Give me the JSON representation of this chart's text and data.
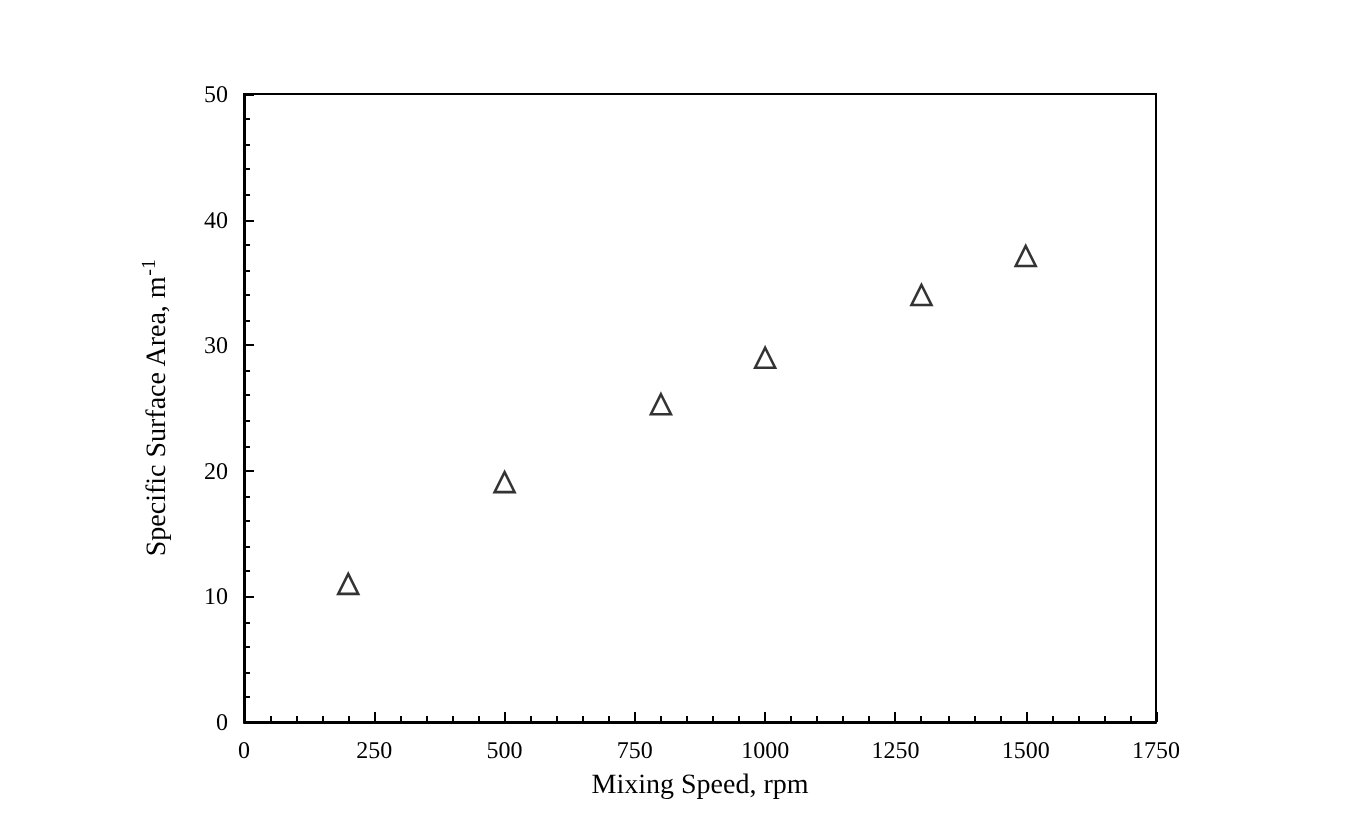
{
  "chart_data": {
    "type": "scatter",
    "xlabel": "Mixing Speed, rpm",
    "ylabel": "Specific Surface Area, m$^{-1}$",
    "x": [
      200,
      500,
      800,
      1000,
      1300,
      1500
    ],
    "series": [
      {
        "color": "#000000",
        "values": [
          11,
          19.1,
          25.3,
          29,
          34,
          37.1
        ]
      }
    ],
    "xlim": [
      0,
      1750
    ],
    "xticks": [
      0,
      250,
      500,
      750,
      1000,
      1250,
      1500,
      1750
    ],
    "ylim": [
      0,
      50
    ],
    "yticks": [
      0,
      10,
      20,
      30,
      40,
      50
    ],
    "marker": "triangle",
    "grid": false
  }
}
